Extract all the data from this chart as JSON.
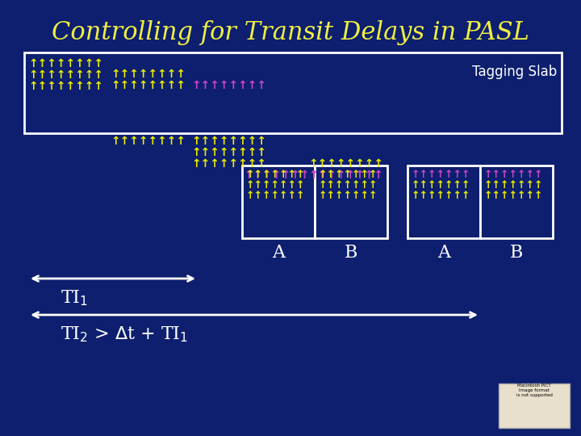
{
  "title": "Controlling for Transit Delays in PASL",
  "title_color": "#EFEF44",
  "title_fontsize": 22,
  "bg_color": "#0d1f6e",
  "yellow": "#EFEF00",
  "magenta": "#CC44CC",
  "white": "#FFFFFF",
  "tagging_slab_label": "Tagging Slab",
  "label_A": "A",
  "label_B": "B"
}
